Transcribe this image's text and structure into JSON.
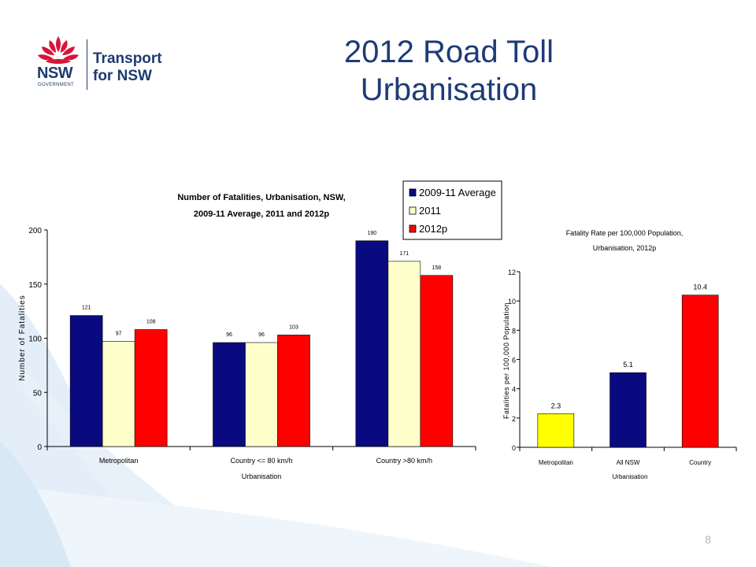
{
  "slide": {
    "title_line1": "2012 Road Toll",
    "title_line2": "Urbanisation",
    "page_number": "8"
  },
  "logo": {
    "nsw": "NSW",
    "government": "GOVERNMENT",
    "line1": "Transport",
    "line2": "for NSW"
  },
  "colors": {
    "avg": "#0a0a80",
    "y2011": "#ffffcc",
    "y2012": "#ff0000",
    "yellow": "#ffff00",
    "title_blue": "#1e3a78",
    "brand_red": "#d7153a",
    "swoosh": "#dbe9f6"
  },
  "chart_data": [
    {
      "type": "bar",
      "title": "Number of Fatalities, Urbanisation, NSW, 2009-11 Average, 2011 and 2012p",
      "title_line1": "Number of Fatalities, Urbanisation, NSW,",
      "title_line2": "2009-11 Average, 2011 and 2012p",
      "xlabel": "Urbanisation",
      "ylabel": "Number of Fatalities",
      "ylim": [
        0,
        200
      ],
      "yticks": [
        0,
        50,
        100,
        150,
        200
      ],
      "categories": [
        "Metropolitan",
        "Country <= 80 km/h",
        "Country >80 km/h"
      ],
      "series": [
        {
          "name": "2009-11 Average",
          "color": "#0a0a80",
          "values": [
            121,
            96,
            190
          ]
        },
        {
          "name": "2011",
          "color": "#ffffcc",
          "values": [
            97,
            96,
            171
          ]
        },
        {
          "name": "2012p",
          "color": "#ff0000",
          "values": [
            108,
            103,
            158
          ]
        }
      ],
      "legend": "top-right",
      "grid": false
    },
    {
      "type": "bar",
      "title": "Fatality Rate per 100,000 Population, Urbanisation, 2012p",
      "title_line1": "Fatality Rate per 100,000 Population,",
      "title_line2": "Urbanisation, 2012p",
      "xlabel": "Urbanisation",
      "ylabel": "Fatalities per 100,000 Population",
      "ylim": [
        0,
        12
      ],
      "yticks": [
        0,
        2,
        4,
        6,
        8,
        10,
        12
      ],
      "categories": [
        "Metropolitan",
        "All NSW",
        "Country"
      ],
      "values": [
        2.3,
        5.1,
        10.4
      ],
      "colors": [
        "#ffff00",
        "#0a0a80",
        "#ff0000"
      ],
      "grid": false
    }
  ]
}
